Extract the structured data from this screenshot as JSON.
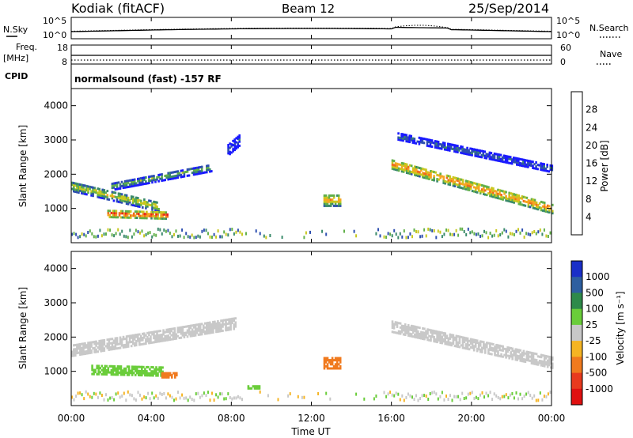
{
  "header": {
    "station": "Kodiak (fitACF)",
    "beam": "Beam 12",
    "date": "25/Sep/2014"
  },
  "left_labels": {
    "nsky": "N.Sky",
    "freq_line1": "Freq.",
    "freq_line2": "[MHz]",
    "cpid": "CPID"
  },
  "right_labels": {
    "nsearch": "N.Search",
    "nave": "Nave"
  },
  "cpid_text": "normalsound (fast) -157 RF",
  "noise_ticks": {
    "left_top": "10^5",
    "left_bottom": "10^0",
    "right_top": "10^5",
    "right_bottom": "10^0"
  },
  "freq_ticks": {
    "left_top": "18",
    "left_bottom": "8",
    "right_top": "60",
    "right_bottom": "0"
  },
  "x_ticks": [
    "00:00",
    "04:00",
    "08:00",
    "12:00",
    "16:00",
    "20:00",
    "00:00"
  ],
  "x_label": "Time UT",
  "y_label": "Slant Range [km]",
  "y_ticks": [
    "1000",
    "2000",
    "3000",
    "4000"
  ],
  "power_colorbar": {
    "title": "Power [dB]",
    "ticks": [
      "4",
      "8",
      "12",
      "16",
      "20",
      "24",
      "28"
    ],
    "colors": [
      "#1a1aff",
      "#2e4fb0",
      "#3a8a6a",
      "#62b04a",
      "#c8c820",
      "#f5a623",
      "#f06a1e",
      "#e81e1e"
    ]
  },
  "velocity_colorbar": {
    "title": "Velocity [m s⁻¹]",
    "ticks": [
      "1000",
      "500",
      "100",
      "25",
      "-25",
      "-100",
      "-500",
      "-1000"
    ],
    "colors": [
      "#1a2fc8",
      "#2e5fa0",
      "#2e8a4a",
      "#6acd3a",
      "#c8c8c8",
      "#f5b423",
      "#f07a1e",
      "#e83a1e",
      "#e01010"
    ]
  },
  "chart_data": [
    {
      "type": "heatmap",
      "panel": "power",
      "xlabel": "Time UT",
      "ylabel": "Slant Range [km]",
      "x_range_hours": [
        0,
        24
      ],
      "ylim": [
        0,
        4500
      ],
      "colorbar_label": "Power [dB]",
      "colorbar_range": [
        0,
        30
      ],
      "bands": [
        {
          "t_start": 0.0,
          "t_end": 4.4,
          "range_start": 1650,
          "range_end": 1050,
          "width": 280,
          "value": 18
        },
        {
          "t_start": 2.0,
          "t_end": 7.0,
          "range_start": 1650,
          "range_end": 2200,
          "width": 220,
          "value": 14
        },
        {
          "t_start": 1.8,
          "t_end": 4.8,
          "range_start": 850,
          "range_end": 800,
          "width": 200,
          "value": 27
        },
        {
          "t_start": 16.0,
          "t_end": 24.0,
          "range_start": 2300,
          "range_end": 1000,
          "width": 280,
          "value": 24
        },
        {
          "t_start": 16.3,
          "t_end": 24.0,
          "range_start": 3100,
          "range_end": 2150,
          "width": 180,
          "value": 10
        },
        {
          "t_start": 12.6,
          "t_end": 13.4,
          "range_start": 1250,
          "range_end": 1250,
          "width": 350,
          "value": 22
        },
        {
          "t_start": 7.8,
          "t_end": 8.4,
          "range_start": 2700,
          "range_end": 3000,
          "width": 300,
          "value": 8
        }
      ]
    },
    {
      "type": "heatmap",
      "panel": "velocity",
      "xlabel": "Time UT",
      "ylabel": "Slant Range [km]",
      "x_range_hours": [
        0,
        24
      ],
      "ylim": [
        0,
        4500
      ],
      "colorbar_label": "Velocity [m s-1]",
      "colorbar_range": [
        -1000,
        1000
      ],
      "bands": [
        {
          "t_start": 0.0,
          "t_end": 8.2,
          "range_start": 1600,
          "range_end": 2400,
          "width": 300,
          "value": 0
        },
        {
          "t_start": 1.0,
          "t_end": 4.6,
          "range_start": 1050,
          "range_end": 1000,
          "width": 260,
          "value": 60
        },
        {
          "t_start": 4.5,
          "t_end": 5.3,
          "range_start": 900,
          "range_end": 900,
          "width": 150,
          "value": -300
        },
        {
          "t_start": 16.0,
          "t_end": 24.0,
          "range_start": 2300,
          "range_end": 1250,
          "width": 300,
          "value": 0
        },
        {
          "t_start": 12.6,
          "t_end": 13.4,
          "range_start": 1250,
          "range_end": 1250,
          "width": 330,
          "value": -300
        },
        {
          "t_start": 8.8,
          "t_end": 9.4,
          "range_start": 550,
          "range_end": 550,
          "width": 100,
          "value": 60
        }
      ]
    }
  ]
}
